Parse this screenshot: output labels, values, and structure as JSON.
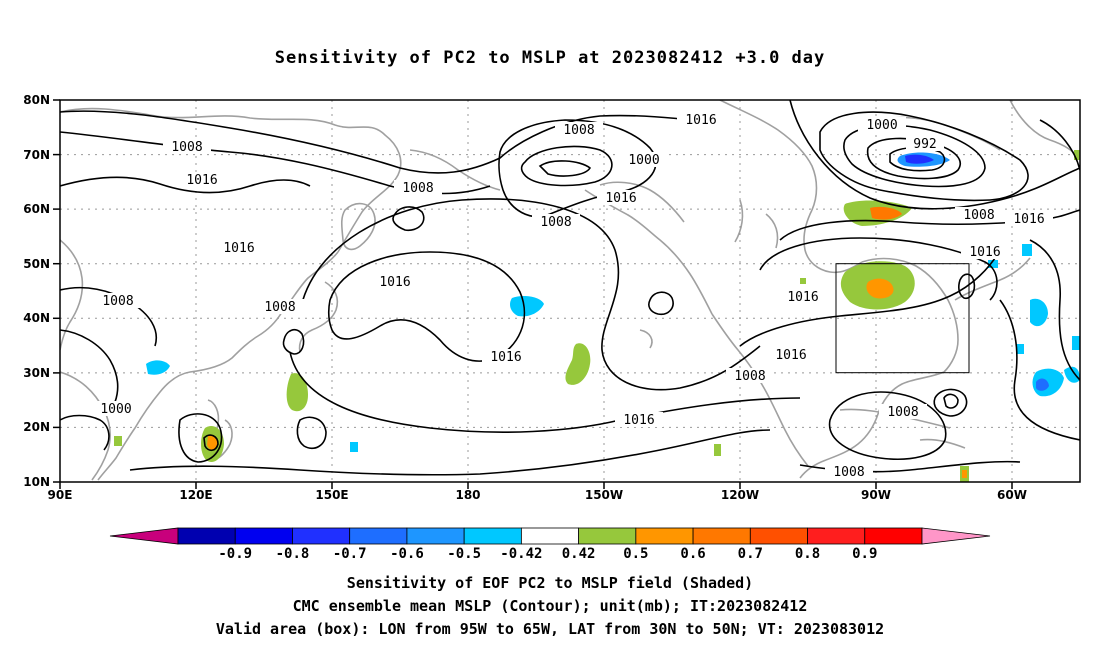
{
  "title": "Sensitivity of PC2 to MSLP at 2023082412 +3.0 day",
  "map": {
    "lon_ticks": [
      "90E",
      "120E",
      "150E",
      "180",
      "150W",
      "120W",
      "90W",
      "60W"
    ],
    "lat_ticks": [
      "80N",
      "70N",
      "60N",
      "50N",
      "40N",
      "30N",
      "20N",
      "10N"
    ],
    "lon_range": [
      "90E",
      "50W"
    ],
    "lat_range": [
      "10N",
      "80N"
    ],
    "grid": "dotted",
    "contour_labels": [
      "1008",
      "1016",
      "1000",
      "992"
    ],
    "box": {
      "lon_w": "95W",
      "lon_e": "65W",
      "lat_s": "30N",
      "lat_n": "50N"
    }
  },
  "colorbar": {
    "labels": [
      "-0.9",
      "-0.8",
      "-0.7",
      "-0.6",
      "-0.5",
      "-0.42",
      "0.42",
      "0.5",
      "0.6",
      "0.7",
      "0.8",
      "0.9"
    ],
    "colors": [
      "#c8007c",
      "#0000b0",
      "#0000f0",
      "#2030ff",
      "#1e6eff",
      "#1e96ff",
      "#00c8ff",
      "#ffffff",
      "#96c83c",
      "#ff9600",
      "#ff7800",
      "#ff5000",
      "#ff1e1e",
      "#ff0000",
      "#ff96c8"
    ]
  },
  "captions": {
    "line1": "Sensitivity of EOF PC2 to MSLP field (Shaded)",
    "line2": "CMC ensemble mean MSLP (Contour); unit(mb); IT:2023082412",
    "line3": "Valid area (box): LON from 95W to 65W, LAT from 30N to 50N; VT: 2023083012"
  }
}
